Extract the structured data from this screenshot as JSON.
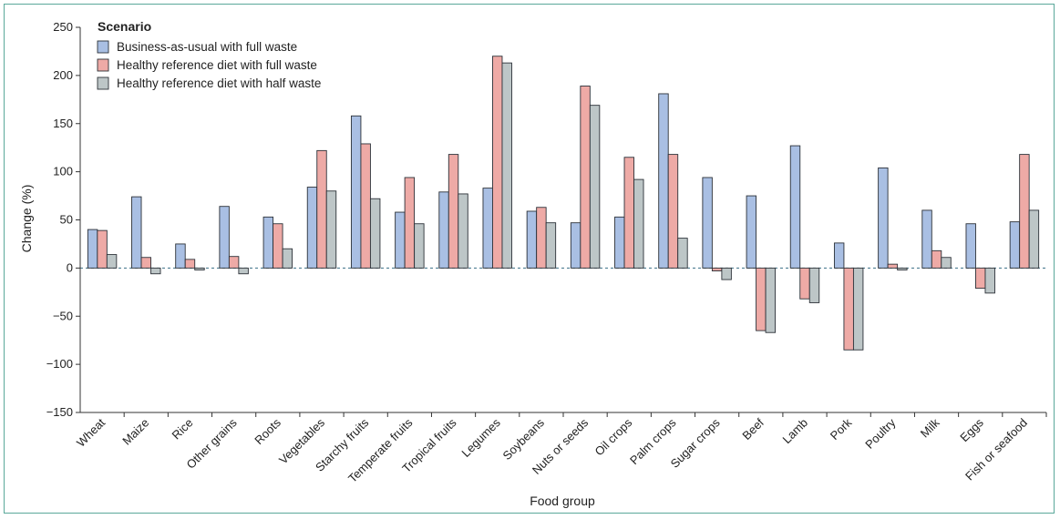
{
  "chart_data": {
    "type": "bar",
    "xlabel": "Food group",
    "ylabel": "Change (%)",
    "ylim": [
      -150,
      250
    ],
    "yticks": [
      -150,
      -100,
      -50,
      0,
      50,
      100,
      150,
      200,
      250
    ],
    "legend_title": "Scenario",
    "legend_position": "top-left",
    "categories": [
      "Wheat",
      "Maize",
      "Rice",
      "Other grains",
      "Roots",
      "Vegetables",
      "Starchy fruits",
      "Temperate fruits",
      "Tropical fruits",
      "Legumes",
      "Soybeans",
      "Nuts or seeds",
      "Oil crops",
      "Palm crops",
      "Sugar crops",
      "Beef",
      "Lamb",
      "Pork",
      "Poultry",
      "Milk",
      "Eggs",
      "Fish or seafood"
    ],
    "series": [
      {
        "name": "Business-as-usual with full waste",
        "color": "#a9bfe3",
        "values": [
          40,
          74,
          25,
          64,
          53,
          84,
          158,
          58,
          79,
          83,
          59,
          47,
          53,
          181,
          94,
          75,
          127,
          26,
          104,
          60,
          46,
          48
        ]
      },
      {
        "name": "Healthy reference diet with full waste",
        "color": "#eeaaa6",
        "values": [
          39,
          11,
          9,
          12,
          46,
          122,
          129,
          94,
          118,
          220,
          63,
          189,
          115,
          118,
          -3,
          -65,
          -32,
          -85,
          4,
          18,
          -21,
          118
        ]
      },
      {
        "name": "Healthy reference diet with half waste",
        "color": "#bdc6c7",
        "values": [
          14,
          -6,
          -2,
          -6,
          20,
          80,
          72,
          46,
          77,
          213,
          47,
          169,
          92,
          31,
          -12,
          -67,
          -36,
          -85,
          -2,
          11,
          -26,
          60
        ]
      }
    ]
  }
}
